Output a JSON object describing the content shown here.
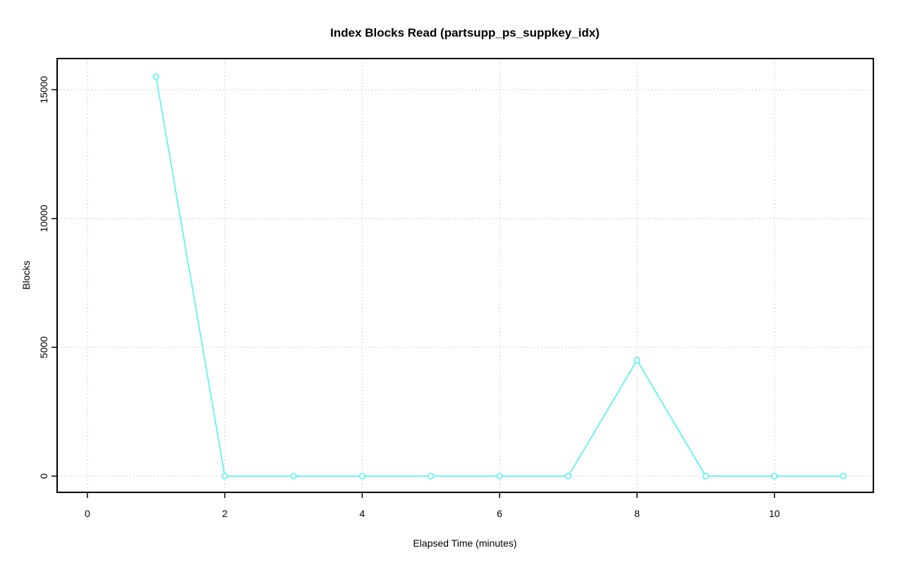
{
  "page": {
    "background_color": "#ffffff"
  },
  "chart_data": {
    "type": "line",
    "title": "Index Blocks Read (partsupp_ps_suppkey_idx)",
    "xlabel": "Elapsed Time (minutes)",
    "ylabel": "Blocks",
    "x": [
      1,
      2,
      3,
      4,
      5,
      6,
      7,
      8,
      9,
      10,
      11
    ],
    "values": [
      15500,
      0,
      0,
      0,
      0,
      0,
      0,
      4500,
      0,
      0,
      0
    ],
    "series_name": "index blocks read",
    "x_ticks": [
      0,
      2,
      4,
      6,
      8,
      10
    ],
    "y_ticks": [
      0,
      5000,
      10000,
      15000
    ],
    "xlim": [
      -0.44,
      11.44
    ],
    "ylim": [
      -630,
      16210
    ],
    "grid": "dotted",
    "legend_position": "none",
    "marker": "open-circle",
    "series_color": "#62f1f1",
    "grid_color": "#c9c9c9",
    "axis_color": "#000000",
    "text_color": "#000000"
  }
}
